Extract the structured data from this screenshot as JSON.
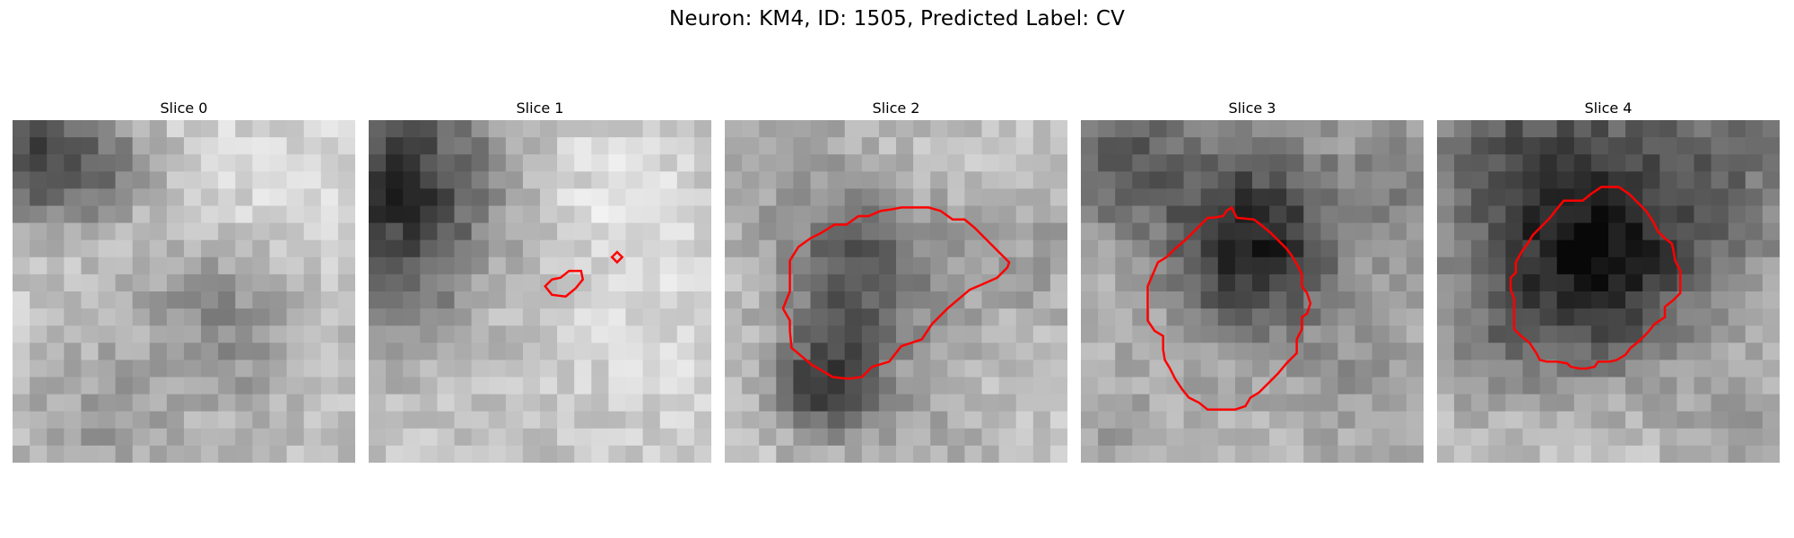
{
  "figure": {
    "title": "Neuron: KM4, ID: 1505, Predicted Label: CV"
  },
  "panels": [
    {
      "title": "Slice 0",
      "outline": []
    },
    {
      "title": "Slice 1",
      "outline": [
        [
          [
            10.7,
            10.2
          ],
          [
            11.5,
            10.3
          ],
          [
            12.1,
            9.8
          ],
          [
            12.5,
            9.3
          ],
          [
            12.4,
            8.8
          ],
          [
            11.7,
            8.8
          ],
          [
            11.2,
            9.2
          ],
          [
            10.7,
            9.3
          ],
          [
            10.3,
            9.7
          ]
        ],
        [
          [
            14.2,
            8.0
          ],
          [
            14.5,
            8.3
          ],
          [
            14.8,
            8.0
          ],
          [
            14.5,
            7.7
          ]
        ]
      ]
    },
    {
      "title": "Slice 2",
      "outline": [
        [
          [
            3.8,
            10.0
          ],
          [
            3.4,
            11.0
          ],
          [
            3.8,
            11.7
          ],
          [
            3.8,
            12.3
          ],
          [
            3.9,
            13.3
          ],
          [
            5.1,
            14.3
          ],
          [
            5.8,
            14.7
          ],
          [
            6.3,
            15.0
          ],
          [
            7.2,
            15.1
          ],
          [
            8.0,
            15.0
          ],
          [
            8.6,
            14.4
          ],
          [
            9.6,
            14.1
          ],
          [
            10.3,
            13.2
          ],
          [
            11.5,
            12.8
          ],
          [
            12.1,
            11.9
          ],
          [
            13.0,
            11.0
          ],
          [
            14.3,
            9.9
          ],
          [
            15.0,
            9.6
          ],
          [
            15.9,
            9.2
          ],
          [
            16.5,
            8.6
          ],
          [
            16.6,
            8.3
          ],
          [
            16.0,
            7.7
          ],
          [
            15.3,
            7.0
          ],
          [
            14.6,
            6.3
          ],
          [
            14.0,
            5.8
          ],
          [
            13.3,
            5.8
          ],
          [
            12.6,
            5.3
          ],
          [
            11.9,
            5.1
          ],
          [
            10.3,
            5.1
          ],
          [
            9.8,
            5.2
          ],
          [
            9.1,
            5.3
          ],
          [
            8.4,
            5.6
          ],
          [
            7.8,
            5.6
          ],
          [
            7.1,
            6.1
          ],
          [
            6.4,
            6.1
          ],
          [
            5.6,
            6.6
          ],
          [
            5.0,
            6.9
          ],
          [
            4.3,
            7.4
          ],
          [
            3.8,
            8.2
          ],
          [
            3.8,
            9.0
          ]
        ]
      ]
    },
    {
      "title": "Slice 3",
      "outline": [
        [
          [
            4.8,
            12.6
          ],
          [
            4.3,
            12.3
          ],
          [
            3.9,
            11.7
          ],
          [
            3.9,
            10.7
          ],
          [
            3.9,
            9.7
          ],
          [
            4.2,
            9.0
          ],
          [
            4.5,
            8.3
          ],
          [
            5.0,
            8.0
          ],
          [
            5.5,
            7.5
          ],
          [
            6.1,
            7.0
          ],
          [
            6.5,
            6.6
          ],
          [
            7.0,
            6.1
          ],
          [
            7.4,
            5.7
          ],
          [
            7.7,
            5.7
          ],
          [
            8.3,
            5.6
          ],
          [
            8.5,
            5.3
          ],
          [
            8.8,
            5.1
          ],
          [
            9.1,
            5.7
          ],
          [
            10.1,
            5.8
          ],
          [
            10.5,
            6.1
          ],
          [
            11.1,
            6.6
          ],
          [
            11.5,
            7.0
          ],
          [
            12.0,
            7.5
          ],
          [
            12.3,
            7.9
          ],
          [
            12.6,
            8.4
          ],
          [
            12.9,
            9.0
          ],
          [
            12.9,
            9.7
          ],
          [
            13.2,
            10.1
          ],
          [
            13.4,
            10.7
          ],
          [
            13.2,
            11.3
          ],
          [
            12.9,
            11.5
          ],
          [
            12.9,
            12.2
          ],
          [
            12.6,
            12.8
          ],
          [
            12.6,
            13.6
          ],
          [
            12.0,
            14.2
          ],
          [
            11.5,
            14.8
          ],
          [
            11.0,
            15.3
          ],
          [
            10.4,
            15.9
          ],
          [
            9.9,
            16.2
          ],
          [
            9.6,
            16.7
          ],
          [
            9.0,
            16.9
          ],
          [
            8.3,
            16.9
          ],
          [
            7.4,
            16.9
          ],
          [
            6.9,
            16.5
          ],
          [
            6.3,
            16.2
          ],
          [
            5.9,
            15.7
          ],
          [
            5.5,
            15.1
          ],
          [
            5.2,
            14.5
          ],
          [
            4.9,
            14.0
          ],
          [
            4.8,
            13.4
          ]
        ]
      ]
    },
    {
      "title": "Slice 4",
      "outline": [
        [
          [
            5.0,
            7.6
          ],
          [
            4.6,
            8.3
          ],
          [
            4.6,
            8.9
          ],
          [
            4.3,
            9.2
          ],
          [
            4.3,
            9.9
          ],
          [
            4.5,
            10.4
          ],
          [
            4.5,
            11.1
          ],
          [
            4.5,
            11.8
          ],
          [
            4.5,
            12.2
          ],
          [
            4.9,
            12.6
          ],
          [
            5.4,
            13.0
          ],
          [
            5.8,
            13.6
          ],
          [
            6.0,
            14.0
          ],
          [
            6.4,
            14.1
          ],
          [
            7.0,
            14.1
          ],
          [
            7.6,
            14.2
          ],
          [
            7.8,
            14.4
          ],
          [
            8.3,
            14.5
          ],
          [
            8.7,
            14.5
          ],
          [
            9.2,
            14.4
          ],
          [
            9.4,
            14.1
          ],
          [
            10.1,
            14.1
          ],
          [
            10.5,
            14.0
          ],
          [
            11.0,
            13.7
          ],
          [
            11.3,
            13.3
          ],
          [
            11.8,
            12.9
          ],
          [
            12.3,
            12.4
          ],
          [
            12.7,
            11.9
          ],
          [
            13.3,
            11.5
          ],
          [
            13.3,
            10.9
          ],
          [
            13.8,
            10.5
          ],
          [
            14.2,
            10.1
          ],
          [
            14.2,
            9.4
          ],
          [
            14.2,
            8.8
          ],
          [
            13.9,
            8.2
          ],
          [
            13.8,
            7.6
          ],
          [
            13.7,
            7.2
          ],
          [
            13.3,
            6.9
          ],
          [
            12.9,
            6.5
          ],
          [
            12.6,
            5.9
          ],
          [
            12.2,
            5.3
          ],
          [
            11.7,
            4.8
          ],
          [
            11.2,
            4.3
          ],
          [
            10.6,
            3.9
          ],
          [
            9.6,
            3.9
          ],
          [
            9.0,
            4.3
          ],
          [
            8.5,
            4.7
          ],
          [
            7.4,
            4.7
          ],
          [
            6.9,
            5.3
          ],
          [
            6.6,
            5.7
          ],
          [
            6.0,
            6.3
          ],
          [
            5.6,
            6.7
          ],
          [
            5.3,
            7.2
          ]
        ]
      ]
    }
  ],
  "colors": {
    "outline": "#ff0000",
    "background": "#ffffff"
  }
}
